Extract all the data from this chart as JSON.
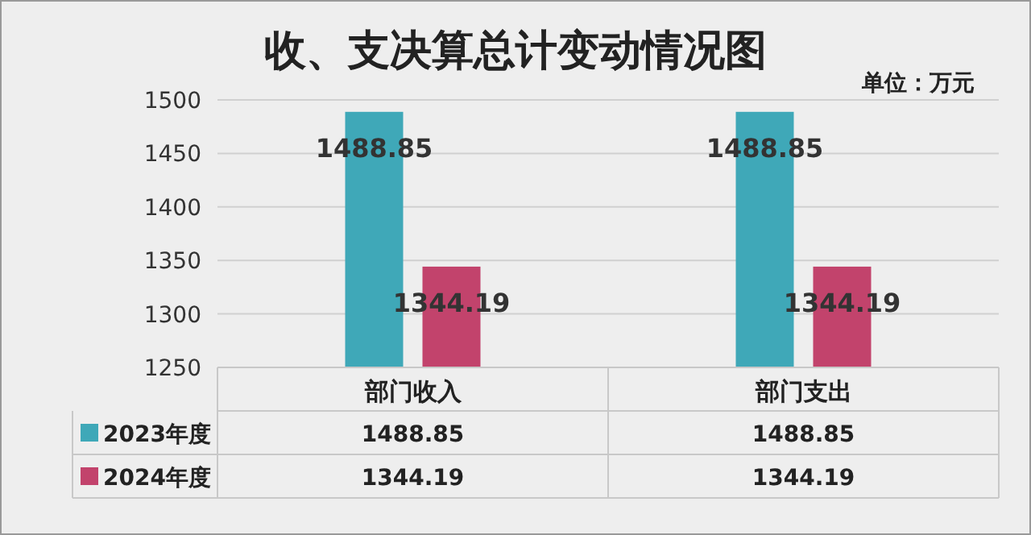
{
  "chart_data": {
    "type": "bar",
    "title": "收、支决算总计变动情况图",
    "annotations": [
      "单位：万元",
      "1488.85",
      "1344.19",
      "1488.85",
      "1344.19"
    ],
    "categories": [
      "部门收入",
      "部门支出"
    ],
    "series": [
      {
        "name": "2023年度",
        "color": "#3fa8b8",
        "values": [
          1488.85,
          1488.85
        ]
      },
      {
        "name": "2024年度",
        "color": "#c2436c",
        "values": [
          1344.19,
          1344.19
        ]
      }
    ],
    "ylim": [
      1250,
      1500
    ],
    "yticks": [
      1250,
      1300,
      1350,
      1400,
      1450,
      1500
    ],
    "grid": "y",
    "legend": "bottom",
    "data_labels": true
  }
}
